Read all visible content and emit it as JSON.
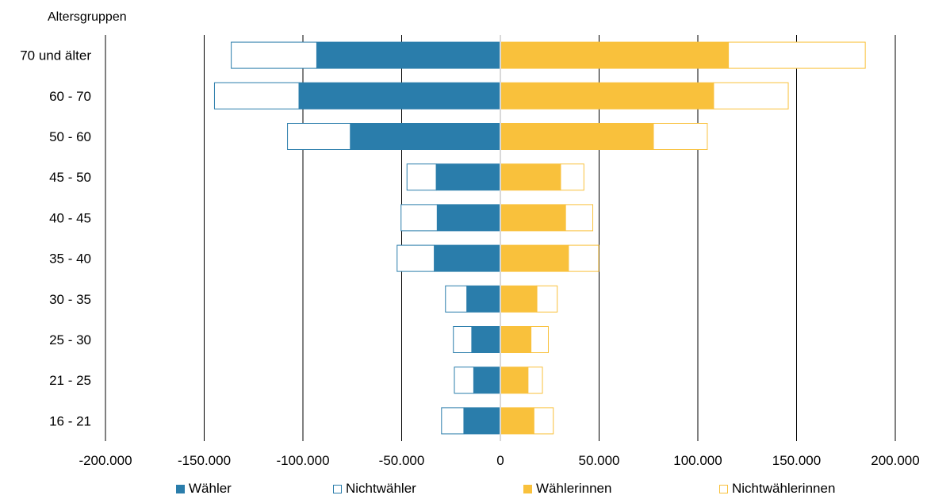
{
  "chart_data": {
    "type": "bar",
    "orientation": "horizontal",
    "stacked": true,
    "ylabel": "Altersgruppen",
    "xlabel": "",
    "xlim": [
      -200000,
      200000
    ],
    "xticks": [
      -200000,
      -150000,
      -100000,
      -50000,
      0,
      50000,
      100000,
      150000,
      200000
    ],
    "xtick_labels": [
      "-200.000",
      "-150.000",
      "-100.000",
      "-50.000",
      "0",
      "50.000",
      "100.000",
      "150.000",
      "200.000"
    ],
    "grid": true,
    "legend_position": "bottom",
    "categories": [
      "70 und älter",
      "60 - 70",
      "50 - 60",
      "45 - 50",
      "40 - 45",
      "35 - 40",
      "30 - 35",
      "25 - 30",
      "21 - 25",
      "16 - 21"
    ],
    "series": [
      {
        "name": "Wähler",
        "color": "#2a7dab",
        "style": "filled",
        "side": "left",
        "values": [
          -93000,
          -102000,
          -76000,
          -32500,
          -32000,
          -33500,
          -17000,
          -14500,
          -13500,
          -18500
        ]
      },
      {
        "name": "Nichtwähler",
        "color": "#2a7dab",
        "style": "outline",
        "side": "left",
        "values": [
          -43500,
          -43000,
          -32000,
          -15000,
          -18500,
          -19000,
          -11000,
          -9500,
          -10000,
          -11500
        ]
      },
      {
        "name": "Wählerinnen",
        "color": "#f9c13c",
        "style": "filled",
        "side": "right",
        "values": [
          115500,
          108000,
          77500,
          30500,
          33000,
          34500,
          18500,
          15500,
          14000,
          17000
        ]
      },
      {
        "name": "Nichtwählerinnen",
        "color": "#f9c13c",
        "style": "outline",
        "side": "right",
        "values": [
          69500,
          38000,
          27500,
          12000,
          14000,
          15500,
          10500,
          9000,
          7500,
          10000
        ]
      }
    ]
  }
}
